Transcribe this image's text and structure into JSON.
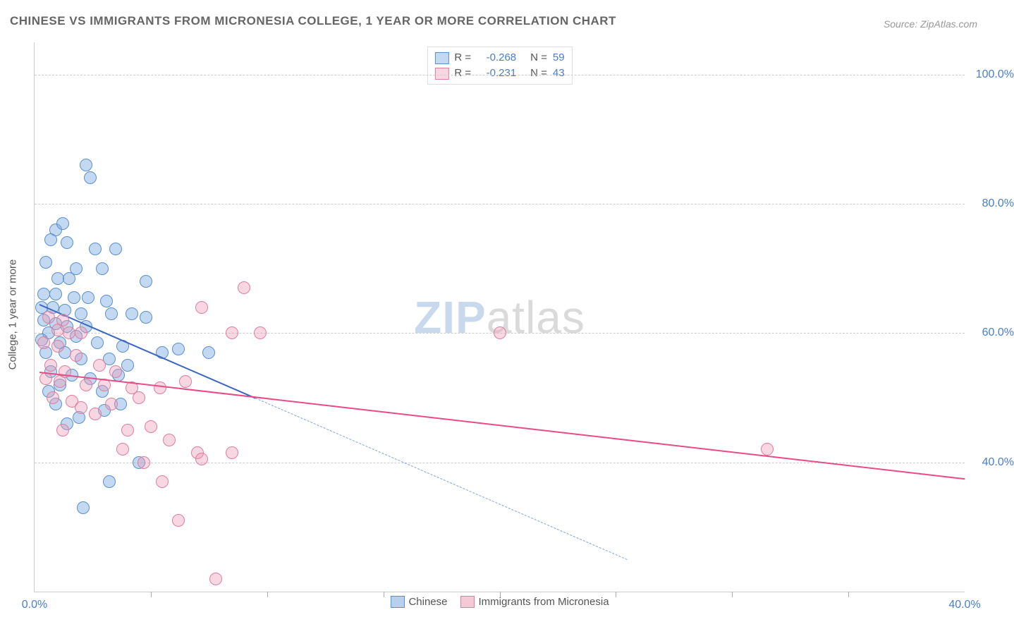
{
  "title": "CHINESE VS IMMIGRANTS FROM MICRONESIA COLLEGE, 1 YEAR OR MORE CORRELATION CHART",
  "source_label": "Source: ZipAtlas.com",
  "ylabel": "College, 1 year or more",
  "watermark": {
    "a": "ZIP",
    "b": "atlas"
  },
  "chart": {
    "type": "scatter",
    "xlim": [
      0,
      40
    ],
    "ylim": [
      20,
      105
    ],
    "yticks": [
      {
        "v": 40,
        "label": "40.0%"
      },
      {
        "v": 60,
        "label": "60.0%"
      },
      {
        "v": 80,
        "label": "80.0%"
      },
      {
        "v": 100,
        "label": "100.0%"
      }
    ],
    "xticks_minor": [
      5,
      10,
      15,
      20,
      25,
      30,
      35
    ],
    "xticks_labeled": [
      {
        "v": 0,
        "label": "0.0%"
      },
      {
        "v": 40,
        "label": "40.0%"
      }
    ],
    "background_color": "#ffffff",
    "grid_color": "#cccccc",
    "marker_radius": 9,
    "marker_border": 1.5,
    "series": [
      {
        "name": "Chinese",
        "fill": "rgba(123, 171, 223, 0.45)",
        "stroke": "#5b8fcf",
        "line_color": "#3a66c2",
        "line_dash_color": "#7ba4d8",
        "R": "-0.268",
        "N": "59",
        "trend": {
          "x1": 0.2,
          "y1": 64.5,
          "x2": 9.5,
          "y2": 50,
          "ext_x2": 25.5,
          "ext_y2": 25
        },
        "points": [
          [
            2.2,
            86
          ],
          [
            2.4,
            84
          ],
          [
            0.9,
            76
          ],
          [
            1.2,
            77
          ],
          [
            0.7,
            74.5
          ],
          [
            1.4,
            74
          ],
          [
            2.6,
            73
          ],
          [
            3.5,
            73
          ],
          [
            0.5,
            71
          ],
          [
            1.8,
            70
          ],
          [
            2.9,
            70
          ],
          [
            1.0,
            68.5
          ],
          [
            1.5,
            68.5
          ],
          [
            4.8,
            68
          ],
          [
            0.4,
            66
          ],
          [
            0.9,
            66
          ],
          [
            1.7,
            65.5
          ],
          [
            2.3,
            65.5
          ],
          [
            3.1,
            65
          ],
          [
            0.3,
            64
          ],
          [
            0.8,
            64
          ],
          [
            1.3,
            63.5
          ],
          [
            2.0,
            63
          ],
          [
            3.3,
            63
          ],
          [
            4.2,
            63
          ],
          [
            4.8,
            62.5
          ],
          [
            0.4,
            62
          ],
          [
            0.9,
            61.5
          ],
          [
            1.4,
            61
          ],
          [
            2.2,
            61
          ],
          [
            0.6,
            60
          ],
          [
            1.8,
            59.5
          ],
          [
            0.3,
            59
          ],
          [
            1.1,
            58.5
          ],
          [
            2.7,
            58.5
          ],
          [
            3.8,
            58
          ],
          [
            0.5,
            57
          ],
          [
            1.3,
            57
          ],
          [
            2.0,
            56
          ],
          [
            3.2,
            56
          ],
          [
            4.0,
            55
          ],
          [
            5.5,
            57
          ],
          [
            6.2,
            57.5
          ],
          [
            7.5,
            57
          ],
          [
            0.7,
            54
          ],
          [
            1.6,
            53.5
          ],
          [
            2.4,
            53
          ],
          [
            3.6,
            53.5
          ],
          [
            0.9,
            49
          ],
          [
            1.4,
            46
          ],
          [
            1.9,
            47
          ],
          [
            3.0,
            48
          ],
          [
            4.5,
            40
          ],
          [
            3.2,
            37
          ],
          [
            2.1,
            33
          ],
          [
            1.1,
            52
          ],
          [
            0.6,
            51
          ],
          [
            2.9,
            51
          ],
          [
            3.7,
            49
          ]
        ]
      },
      {
        "name": "Immigrants from Micronesia",
        "fill": "rgba(236, 156, 180, 0.40)",
        "stroke": "#e07d9e",
        "line_color": "#e94b86",
        "R": "-0.231",
        "N": "43",
        "trend": {
          "x1": 0.2,
          "y1": 54,
          "x2": 40,
          "y2": 37.5
        },
        "points": [
          [
            9.0,
            67
          ],
          [
            7.2,
            64
          ],
          [
            0.6,
            62.5
          ],
          [
            1.2,
            62
          ],
          [
            1.0,
            60.5
          ],
          [
            1.5,
            60
          ],
          [
            2.0,
            60
          ],
          [
            8.5,
            60
          ],
          [
            9.7,
            60
          ],
          [
            20.0,
            60
          ],
          [
            0.4,
            58.5
          ],
          [
            1.0,
            58
          ],
          [
            1.8,
            56.5
          ],
          [
            0.7,
            55
          ],
          [
            1.3,
            54
          ],
          [
            2.8,
            55
          ],
          [
            3.5,
            54
          ],
          [
            0.5,
            53
          ],
          [
            1.1,
            52.5
          ],
          [
            2.2,
            52
          ],
          [
            3.0,
            52
          ],
          [
            4.2,
            51.5
          ],
          [
            5.4,
            51.5
          ],
          [
            6.5,
            52.5
          ],
          [
            0.8,
            50
          ],
          [
            1.6,
            49.5
          ],
          [
            3.3,
            49
          ],
          [
            4.5,
            50
          ],
          [
            2.6,
            47.5
          ],
          [
            1.2,
            45
          ],
          [
            4.0,
            45
          ],
          [
            5.0,
            45.5
          ],
          [
            5.8,
            43.5
          ],
          [
            7.0,
            41.5
          ],
          [
            8.5,
            41.5
          ],
          [
            5.5,
            37
          ],
          [
            7.2,
            40.5
          ],
          [
            31.5,
            42
          ],
          [
            3.8,
            42
          ],
          [
            4.7,
            40
          ],
          [
            7.8,
            22
          ],
          [
            6.2,
            31
          ],
          [
            2.0,
            48.5
          ]
        ]
      }
    ]
  },
  "legend_top_labels": {
    "R": "R =",
    "N": "N ="
  },
  "legend_bottom": [
    {
      "label": "Chinese",
      "fill": "rgba(123, 171, 223, 0.55)",
      "stroke": "#5b8fcf"
    },
    {
      "label": "Immigrants from Micronesia",
      "fill": "rgba(236, 156, 180, 0.55)",
      "stroke": "#e07d9e"
    }
  ]
}
